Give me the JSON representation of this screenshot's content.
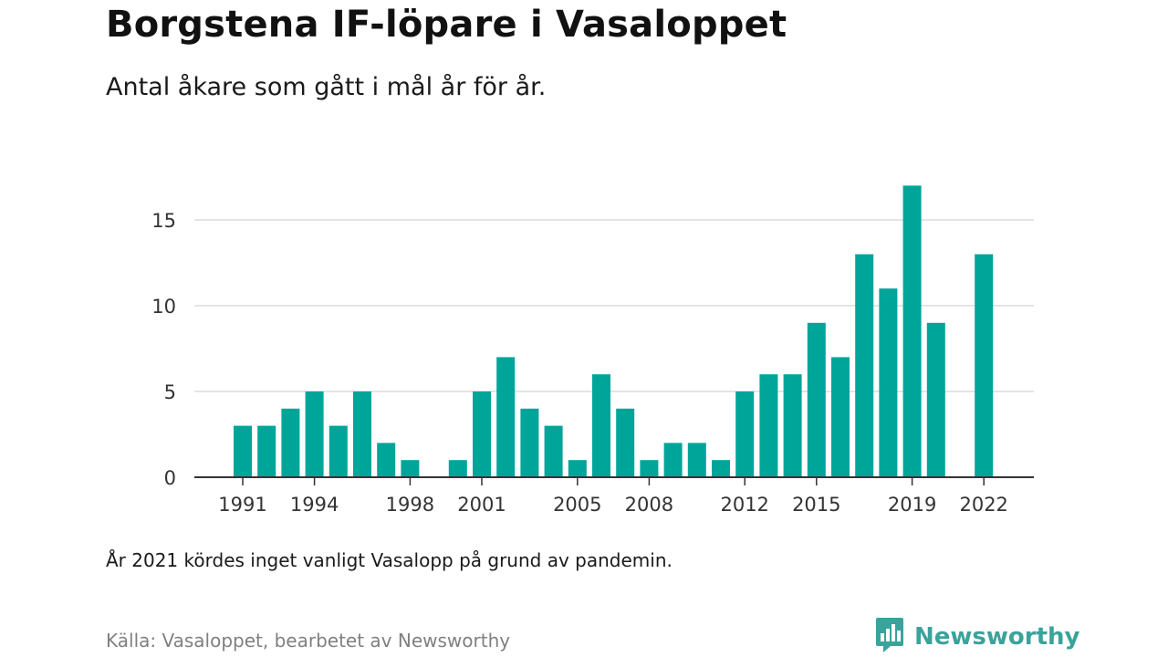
{
  "title": "Borgstena IF-löpare i Vasaloppet",
  "subtitle": "Antal åkare som gått i mål år för år.",
  "note": "År 2021 kördes inget vanligt Vasalopp på grund av pandemin.",
  "source": "Källa: Vasaloppet, bearbetet av Newsworthy",
  "brand": {
    "name": "Newsworthy",
    "icon": "newsworthy-logo-icon",
    "color": "#3aa39b"
  },
  "chart_data": {
    "type": "bar",
    "title": "",
    "xlabel": "",
    "ylabel": "",
    "bar_color": "#00a59a",
    "grid": true,
    "ylim": [
      0,
      18
    ],
    "yticks": [
      0,
      5,
      10,
      15
    ],
    "xtick_labels": [
      "1991",
      "1994",
      "1998",
      "2001",
      "2005",
      "2008",
      "2012",
      "2015",
      "2019",
      "2022"
    ],
    "categories": [
      1991,
      1992,
      1993,
      1994,
      1995,
      1996,
      1997,
      1998,
      1999,
      2000,
      2001,
      2002,
      2003,
      2004,
      2005,
      2006,
      2007,
      2008,
      2009,
      2010,
      2011,
      2012,
      2013,
      2014,
      2015,
      2016,
      2017,
      2018,
      2019,
      2020,
      2021,
      2022
    ],
    "values": [
      3,
      3,
      4,
      5,
      3,
      5,
      2,
      1,
      0,
      1,
      5,
      7,
      4,
      3,
      1,
      6,
      4,
      1,
      2,
      2,
      1,
      5,
      6,
      6,
      9,
      7,
      13,
      11,
      17,
      9,
      0,
      13
    ]
  }
}
